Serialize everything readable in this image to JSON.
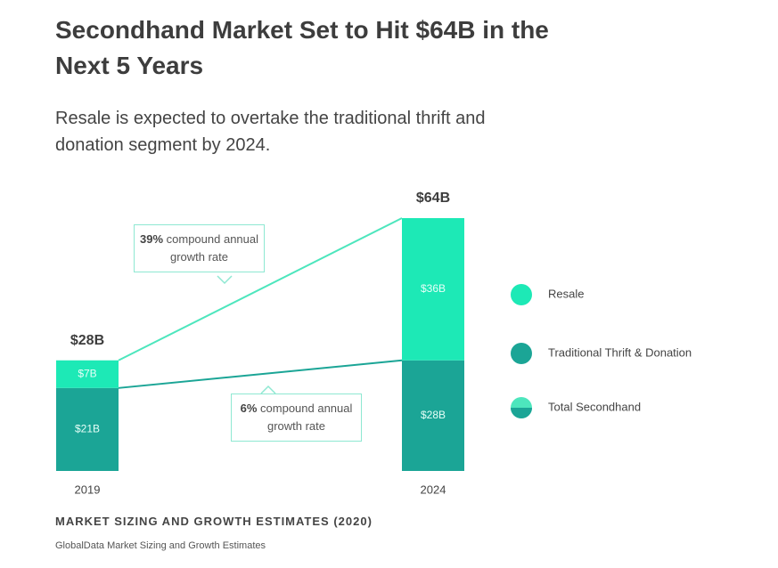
{
  "chart_data": {
    "type": "bar",
    "stacked": true,
    "title": "Secondhand Market Set to Hit $64B in the Next 5 Years",
    "subtitle": "Resale is expected to overtake the traditional thrift and donation segment by 2024.",
    "categories": [
      "2019",
      "2024"
    ],
    "series": [
      {
        "name": "Resale",
        "color": "#1de9b6",
        "values": [
          7,
          36
        ],
        "value_labels": [
          "$7B",
          "$36B"
        ]
      },
      {
        "name": "Traditional Thrift & Donation",
        "color": "#1ba596",
        "values": [
          21,
          28
        ],
        "value_labels": [
          "$21B",
          "$28B"
        ]
      },
      {
        "name": "Total Secondhand",
        "type": "line",
        "color": "#4de6bd",
        "values": [
          28,
          64
        ],
        "value_labels": [
          "$28B",
          "$64B"
        ]
      }
    ],
    "annotations": [
      {
        "highlight": "39%",
        "text": "compound annual growth rate"
      },
      {
        "highlight": "6%",
        "text": "compound annual growth rate"
      }
    ],
    "footer": "MARKET SIZING AND GROWTH ESTIMATES (2020)",
    "source": "GlobalData Market Sizing and Growth Estimates"
  }
}
